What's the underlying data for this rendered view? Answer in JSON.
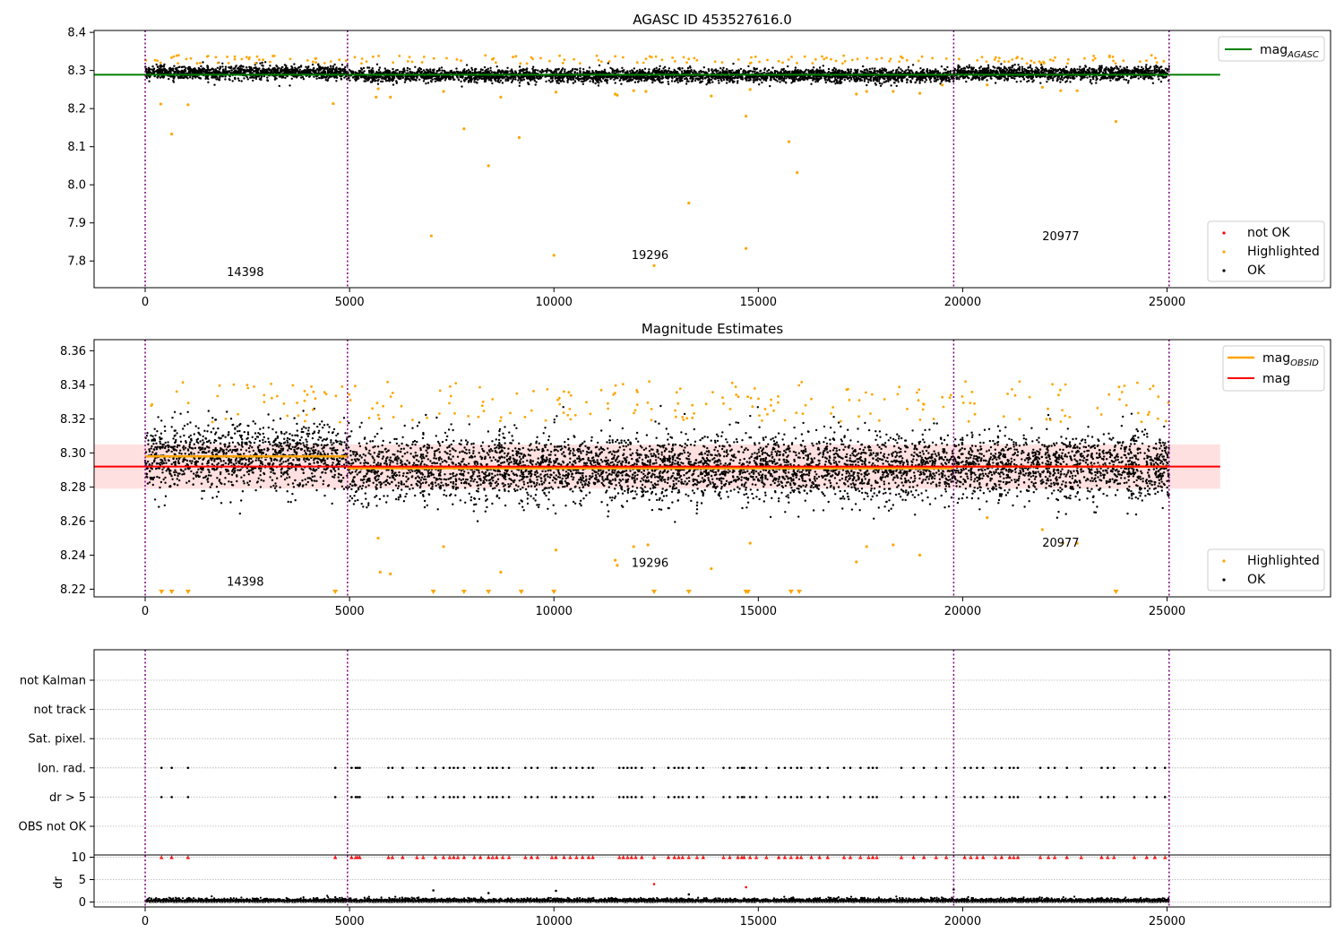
{
  "chart_data": [
    {
      "type": "scatter",
      "title": "AGASC ID 453527616.0",
      "xlim": [
        -1250,
        29000
      ],
      "ylim": [
        7.73,
        8.405
      ],
      "x_ticks": [
        0,
        5000,
        10000,
        15000,
        20000,
        25000
      ],
      "y_ticks": [
        7.8,
        7.9,
        8.0,
        8.1,
        8.2,
        8.3,
        8.4
      ],
      "y_tick_labels": [
        "7.8",
        "7.9",
        "8.0",
        "8.1",
        "8.2",
        "8.3",
        "8.4"
      ],
      "obsid_boundaries": [
        0,
        4950,
        19780,
        25050
      ],
      "obsid_labels": [
        {
          "text": "14398",
          "x": 2450,
          "y": 7.76
        },
        {
          "text": "19296",
          "x": 12350,
          "y": 7.805
        },
        {
          "text": "20977",
          "x": 22400,
          "y": 7.855
        }
      ],
      "reference_lines": [
        {
          "name": "mag_AGASC",
          "y": 8.289,
          "x_range": [
            -1250,
            26300
          ],
          "color": "#008000"
        }
      ],
      "band": {
        "center_segments": [
          [
            0,
            4950,
            8.295
          ],
          [
            4950,
            19780,
            8.287
          ],
          [
            19780,
            25050,
            8.292
          ]
        ],
        "spread": 0.018
      },
      "highlighted_points": [
        [
          380,
          8.212
        ],
        [
          650,
          8.133
        ],
        [
          1050,
          8.21
        ],
        [
          4600,
          8.213
        ],
        [
          5700,
          8.252
        ],
        [
          6000,
          8.23
        ],
        [
          5650,
          8.23
        ],
        [
          7000,
          7.866
        ],
        [
          7300,
          8.245
        ],
        [
          7800,
          8.147
        ],
        [
          8400,
          8.05
        ],
        [
          8700,
          8.23
        ],
        [
          9150,
          8.124
        ],
        [
          10000,
          7.815
        ],
        [
          10050,
          8.243
        ],
        [
          11550,
          8.235
        ],
        [
          11500,
          8.238
        ],
        [
          11950,
          8.247
        ],
        [
          12250,
          8.245
        ],
        [
          12450,
          7.788
        ],
        [
          13300,
          7.952
        ],
        [
          13850,
          8.233
        ],
        [
          14700,
          8.18
        ],
        [
          14700,
          7.833
        ],
        [
          14800,
          8.25
        ],
        [
          15750,
          8.113
        ],
        [
          15950,
          8.032
        ],
        [
          17400,
          8.238
        ],
        [
          17650,
          8.245
        ],
        [
          18300,
          8.245
        ],
        [
          18950,
          8.24
        ],
        [
          19500,
          8.262
        ],
        [
          20600,
          8.262
        ],
        [
          21950,
          8.256
        ],
        [
          22400,
          8.247
        ],
        [
          22800,
          8.247
        ],
        [
          23750,
          8.166
        ]
      ],
      "legend_top": [
        "mag_AGASC"
      ],
      "legend_bottom": [
        "not OK",
        "Highlighted",
        "OK"
      ]
    },
    {
      "type": "scatter",
      "title": "Magnitude Estimates",
      "xlim": [
        -1250,
        29000
      ],
      "ylim": [
        8.2155,
        8.3665
      ],
      "x_ticks": [
        0,
        5000,
        10000,
        15000,
        20000,
        25000
      ],
      "y_ticks": [
        8.22,
        8.24,
        8.26,
        8.28,
        8.3,
        8.32,
        8.34,
        8.36
      ],
      "y_tick_labels": [
        "8.22",
        "8.24",
        "8.26",
        "8.28",
        "8.30",
        "8.32",
        "8.34",
        "8.36"
      ],
      "obsid_boundaries": [
        0,
        4950,
        19780,
        25050
      ],
      "obsid_labels": [
        {
          "text": "14398",
          "x": 2450,
          "y": 8.222
        },
        {
          "text": "19296",
          "x": 12350,
          "y": 8.233
        },
        {
          "text": "20977",
          "x": 22400,
          "y": 8.245
        }
      ],
      "mag_obsid_segments": [
        [
          0,
          4950,
          8.298
        ],
        [
          4950,
          19780,
          8.291
        ],
        [
          19780,
          25050,
          8.292
        ]
      ],
      "mag": {
        "name": "mag",
        "y": 8.292,
        "x_range": [
          -1250,
          26300
        ],
        "band": [
          8.279,
          8.305
        ],
        "color": "#ff0000"
      },
      "outlier_markers_x": [
        400,
        650,
        1050,
        4650,
        7050,
        7800,
        8400,
        9200,
        10000,
        12450,
        13300,
        14700,
        14750,
        15800,
        16000,
        23750
      ],
      "highlighted_points": [
        [
          5700,
          8.25
        ],
        [
          5750,
          8.23
        ],
        [
          6000,
          8.229
        ],
        [
          7300,
          8.245
        ],
        [
          8700,
          8.23
        ],
        [
          10050,
          8.243
        ],
        [
          11500,
          8.237
        ],
        [
          11550,
          8.234
        ],
        [
          11950,
          8.245
        ],
        [
          12300,
          8.246
        ],
        [
          13850,
          8.232
        ],
        [
          14800,
          8.247
        ],
        [
          17400,
          8.236
        ],
        [
          17650,
          8.245
        ],
        [
          18300,
          8.246
        ],
        [
          18950,
          8.24
        ],
        [
          20600,
          8.262
        ],
        [
          21950,
          8.255
        ],
        [
          22450,
          8.247
        ],
        [
          22800,
          8.247
        ]
      ],
      "legend_top": [
        "mag_OBSID",
        "mag"
      ],
      "legend_bottom": [
        "Highlighted",
        "OK"
      ]
    },
    {
      "type": "scatter",
      "title": "",
      "xlim": [
        -1250,
        29000
      ],
      "categories": [
        "OBS not OK",
        "dr > 5",
        "Ion. rad.",
        "Sat. pixel.",
        "not track",
        "not Kalman"
      ],
      "flag_x": [
        400,
        650,
        1050,
        4650,
        5050,
        5150,
        5200,
        5250,
        5950,
        6050,
        6300,
        6650,
        6800,
        7100,
        7300,
        7450,
        7550,
        7650,
        7800,
        8050,
        8200,
        8400,
        8500,
        8600,
        8750,
        8900,
        9300,
        9450,
        9600,
        9950,
        10050,
        10250,
        10400,
        10550,
        10700,
        10850,
        10950,
        11600,
        11700,
        11800,
        11900,
        12000,
        12150,
        12450,
        12800,
        12950,
        13050,
        13150,
        13300,
        13500,
        13650,
        14150,
        14300,
        14500,
        14600,
        14650,
        14800,
        14950,
        15200,
        15500,
        15650,
        15800,
        15950,
        16050,
        16300,
        16500,
        16700,
        17100,
        17250,
        17500,
        17700,
        17800,
        17900,
        18500,
        18800,
        19050,
        19350,
        19600,
        20050,
        20200,
        20350,
        20500,
        20800,
        20950,
        21150,
        21250,
        21350,
        21900,
        22100,
        22250,
        22550,
        22900,
        23400,
        23550,
        23700,
        24200,
        24500,
        24700,
        24950
      ],
      "dr_axis": {
        "ylabel": "dr",
        "ylim": [
          -0.3,
          10.5
        ],
        "ticks": [
          0,
          5,
          10
        ],
        "tick_labels": [
          "0",
          "5",
          "10"
        ]
      },
      "dr_high_points": [
        [
          7050,
          2.6
        ],
        [
          8400,
          2.0
        ],
        [
          10050,
          2.5
        ],
        [
          12450,
          4.0
        ],
        [
          13300,
          1.7
        ],
        [
          14700,
          3.3
        ],
        [
          19780,
          2.8
        ]
      ],
      "dr_capped_value": 10
    }
  ]
}
